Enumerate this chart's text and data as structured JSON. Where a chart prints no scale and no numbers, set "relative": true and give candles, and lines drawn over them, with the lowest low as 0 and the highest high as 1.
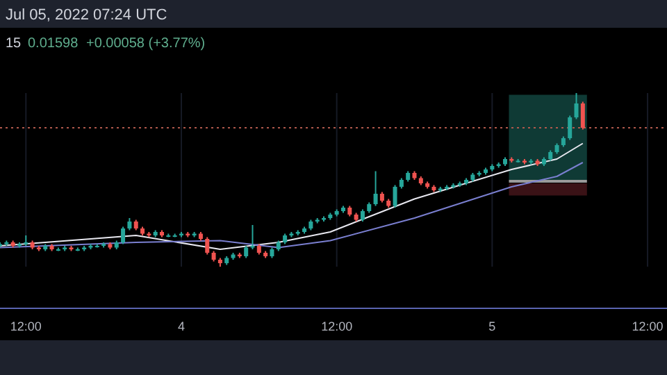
{
  "chart_data": {
    "type": "candlestick",
    "relative": true,
    "annotations": [
      "Jul 05, 2022 07:24 UTC",
      "15",
      "0.01598",
      "+0.00058 (+3.77%)"
    ],
    "x": [
      "2022-07-03T10:00",
      "2022-07-03T10:30",
      "2022-07-03T11:00",
      "2022-07-03T11:30",
      "2022-07-03T12:00",
      "2022-07-03T12:30",
      "2022-07-03T13:00",
      "2022-07-03T13:30",
      "2022-07-03T14:00",
      "2022-07-03T14:30",
      "2022-07-03T15:00",
      "2022-07-03T15:30",
      "2022-07-03T16:00",
      "2022-07-03T16:30",
      "2022-07-03T17:00",
      "2022-07-03T17:30",
      "2022-07-03T18:00",
      "2022-07-03T18:30",
      "2022-07-03T19:00",
      "2022-07-03T19:30",
      "2022-07-03T20:00",
      "2022-07-03T20:30",
      "2022-07-03T21:00",
      "2022-07-03T21:30",
      "2022-07-03T22:00",
      "2022-07-03T22:30",
      "2022-07-03T23:00",
      "2022-07-03T23:30",
      "2022-07-04T00:00",
      "2022-07-04T00:30",
      "2022-07-04T01:00",
      "2022-07-04T01:30",
      "2022-07-04T02:00",
      "2022-07-04T02:30",
      "2022-07-04T03:00",
      "2022-07-04T03:30",
      "2022-07-04T04:00",
      "2022-07-04T04:30",
      "2022-07-04T05:00",
      "2022-07-04T05:30",
      "2022-07-04T06:00",
      "2022-07-04T06:30",
      "2022-07-04T07:00",
      "2022-07-04T07:30",
      "2022-07-04T08:00",
      "2022-07-04T08:30",
      "2022-07-04T09:00",
      "2022-07-04T09:30",
      "2022-07-04T10:00",
      "2022-07-04T10:30",
      "2022-07-04T11:00",
      "2022-07-04T11:30",
      "2022-07-04T12:00",
      "2022-07-04T12:30",
      "2022-07-04T13:00",
      "2022-07-04T13:30",
      "2022-07-04T14:00",
      "2022-07-04T14:30",
      "2022-07-04T15:00",
      "2022-07-04T15:30",
      "2022-07-04T16:00",
      "2022-07-04T16:30",
      "2022-07-04T17:00",
      "2022-07-04T17:30",
      "2022-07-04T18:00",
      "2022-07-04T18:30",
      "2022-07-04T19:00",
      "2022-07-04T19:30",
      "2022-07-04T20:00",
      "2022-07-04T20:30",
      "2022-07-04T21:00",
      "2022-07-04T21:30",
      "2022-07-04T22:00",
      "2022-07-04T22:30",
      "2022-07-04T23:00",
      "2022-07-04T23:30",
      "2022-07-05T00:00",
      "2022-07-05T00:30",
      "2022-07-05T01:00",
      "2022-07-05T01:30",
      "2022-07-05T02:00",
      "2022-07-05T02:30",
      "2022-07-05T03:00",
      "2022-07-05T03:30",
      "2022-07-05T04:00",
      "2022-07-05T04:30",
      "2022-07-05T05:00",
      "2022-07-05T05:30",
      "2022-07-05T06:00",
      "2022-07-05T06:30",
      "2022-07-05T07:00"
    ],
    "ohlc": [
      [
        0.12,
        0.14,
        0.11,
        0.13
      ],
      [
        0.13,
        0.15,
        0.12,
        0.14
      ],
      [
        0.14,
        0.15,
        0.11,
        0.12
      ],
      [
        0.12,
        0.14,
        0.11,
        0.13
      ],
      [
        0.13,
        0.18,
        0.12,
        0.14
      ],
      [
        0.14,
        0.15,
        0.1,
        0.11
      ],
      [
        0.11,
        0.12,
        0.09,
        0.1
      ],
      [
        0.1,
        0.13,
        0.09,
        0.12
      ],
      [
        0.12,
        0.13,
        0.09,
        0.1
      ],
      [
        0.1,
        0.11,
        0.09,
        0.1
      ],
      [
        0.1,
        0.12,
        0.09,
        0.11
      ],
      [
        0.11,
        0.12,
        0.09,
        0.1
      ],
      [
        0.1,
        0.11,
        0.09,
        0.1
      ],
      [
        0.1,
        0.12,
        0.09,
        0.11
      ],
      [
        0.11,
        0.13,
        0.1,
        0.12
      ],
      [
        0.12,
        0.13,
        0.11,
        0.12
      ],
      [
        0.12,
        0.14,
        0.11,
        0.13
      ],
      [
        0.13,
        0.14,
        0.1,
        0.11
      ],
      [
        0.11,
        0.15,
        0.1,
        0.14
      ],
      [
        0.14,
        0.23,
        0.13,
        0.22
      ],
      [
        0.22,
        0.28,
        0.21,
        0.26
      ],
      [
        0.26,
        0.27,
        0.21,
        0.22
      ],
      [
        0.22,
        0.23,
        0.18,
        0.19
      ],
      [
        0.19,
        0.2,
        0.17,
        0.18
      ],
      [
        0.18,
        0.21,
        0.17,
        0.2
      ],
      [
        0.2,
        0.21,
        0.17,
        0.18
      ],
      [
        0.18,
        0.19,
        0.17,
        0.18
      ],
      [
        0.18,
        0.19,
        0.17,
        0.18
      ],
      [
        0.18,
        0.2,
        0.17,
        0.19
      ],
      [
        0.19,
        0.2,
        0.17,
        0.18
      ],
      [
        0.18,
        0.2,
        0.17,
        0.19
      ],
      [
        0.19,
        0.2,
        0.15,
        0.16
      ],
      [
        0.16,
        0.17,
        0.07,
        0.08
      ],
      [
        0.08,
        0.09,
        0.03,
        0.04
      ],
      [
        0.04,
        0.05,
        0.0,
        0.02
      ],
      [
        0.02,
        0.06,
        0.01,
        0.05
      ],
      [
        0.05,
        0.08,
        0.04,
        0.07
      ],
      [
        0.07,
        0.08,
        0.05,
        0.06
      ],
      [
        0.06,
        0.12,
        0.05,
        0.11
      ],
      [
        0.11,
        0.24,
        0.1,
        0.12
      ],
      [
        0.12,
        0.13,
        0.07,
        0.08
      ],
      [
        0.08,
        0.09,
        0.05,
        0.06
      ],
      [
        0.06,
        0.11,
        0.05,
        0.1
      ],
      [
        0.1,
        0.15,
        0.09,
        0.14
      ],
      [
        0.14,
        0.19,
        0.13,
        0.18
      ],
      [
        0.18,
        0.2,
        0.17,
        0.19
      ],
      [
        0.19,
        0.21,
        0.18,
        0.2
      ],
      [
        0.2,
        0.23,
        0.19,
        0.22
      ],
      [
        0.22,
        0.27,
        0.21,
        0.26
      ],
      [
        0.26,
        0.28,
        0.25,
        0.27
      ],
      [
        0.27,
        0.29,
        0.26,
        0.28
      ],
      [
        0.28,
        0.31,
        0.27,
        0.3
      ],
      [
        0.3,
        0.33,
        0.29,
        0.32
      ],
      [
        0.32,
        0.35,
        0.31,
        0.34
      ],
      [
        0.34,
        0.35,
        0.29,
        0.3
      ],
      [
        0.3,
        0.31,
        0.26,
        0.27
      ],
      [
        0.27,
        0.33,
        0.26,
        0.32
      ],
      [
        0.32,
        0.37,
        0.31,
        0.36
      ],
      [
        0.36,
        0.55,
        0.35,
        0.42
      ],
      [
        0.42,
        0.43,
        0.37,
        0.38
      ],
      [
        0.38,
        0.39,
        0.34,
        0.35
      ],
      [
        0.35,
        0.47,
        0.34,
        0.46
      ],
      [
        0.46,
        0.51,
        0.45,
        0.5
      ],
      [
        0.5,
        0.55,
        0.49,
        0.54
      ],
      [
        0.54,
        0.55,
        0.5,
        0.51
      ],
      [
        0.51,
        0.52,
        0.47,
        0.48
      ],
      [
        0.48,
        0.49,
        0.45,
        0.46
      ],
      [
        0.46,
        0.47,
        0.43,
        0.44
      ],
      [
        0.44,
        0.46,
        0.43,
        0.45
      ],
      [
        0.45,
        0.47,
        0.44,
        0.46
      ],
      [
        0.46,
        0.48,
        0.45,
        0.47
      ],
      [
        0.47,
        0.49,
        0.46,
        0.48
      ],
      [
        0.48,
        0.51,
        0.47,
        0.5
      ],
      [
        0.5,
        0.54,
        0.49,
        0.53
      ],
      [
        0.53,
        0.55,
        0.52,
        0.54
      ],
      [
        0.54,
        0.57,
        0.53,
        0.56
      ],
      [
        0.56,
        0.59,
        0.55,
        0.58
      ],
      [
        0.58,
        0.6,
        0.57,
        0.59
      ],
      [
        0.59,
        0.63,
        0.58,
        0.62
      ],
      [
        0.62,
        0.63,
        0.6,
        0.61
      ],
      [
        0.61,
        0.62,
        0.6,
        0.61
      ],
      [
        0.61,
        0.62,
        0.59,
        0.6
      ],
      [
        0.6,
        0.62,
        0.59,
        0.61
      ],
      [
        0.61,
        0.62,
        0.58,
        0.59
      ],
      [
        0.59,
        0.63,
        0.58,
        0.62
      ],
      [
        0.62,
        0.67,
        0.61,
        0.66
      ],
      [
        0.66,
        0.71,
        0.65,
        0.7
      ],
      [
        0.7,
        0.75,
        0.69,
        0.74
      ],
      [
        0.74,
        0.87,
        0.73,
        0.86
      ],
      [
        0.86,
        1.0,
        0.85,
        0.94
      ],
      [
        0.94,
        0.95,
        0.79,
        0.8
      ]
    ],
    "colors": [
      "#26a69a",
      "#26a69a",
      "#ef5350",
      "#26a69a",
      "#26a69a",
      "#ef5350",
      "#ef5350",
      "#26a69a",
      "#ef5350",
      "#26a69a",
      "#26a69a",
      "#ef5350",
      "#26a69a",
      "#26a69a",
      "#26a69a",
      "#26a69a",
      "#26a69a",
      "#ef5350",
      "#26a69a",
      "#26a69a",
      "#26a69a",
      "#ef5350",
      "#ef5350",
      "#ef5350",
      "#26a69a",
      "#ef5350",
      "#26a69a",
      "#26a69a",
      "#26a69a",
      "#ef5350",
      "#26a69a",
      "#ef5350",
      "#ef5350",
      "#ef5350",
      "#ef5350",
      "#26a69a",
      "#26a69a",
      "#ef5350",
      "#26a69a",
      "#26a69a",
      "#ef5350",
      "#ef5350",
      "#26a69a",
      "#26a69a",
      "#26a69a",
      "#26a69a",
      "#26a69a",
      "#26a69a",
      "#26a69a",
      "#26a69a",
      "#26a69a",
      "#26a69a",
      "#26a69a",
      "#26a69a",
      "#ef5350",
      "#ef5350",
      "#26a69a",
      "#26a69a",
      "#26a69a",
      "#ef5350",
      "#ef5350",
      "#26a69a",
      "#26a69a",
      "#26a69a",
      "#ef5350",
      "#ef5350",
      "#ef5350",
      "#ef5350",
      "#26a69a",
      "#26a69a",
      "#26a69a",
      "#26a69a",
      "#26a69a",
      "#26a69a",
      "#26a69a",
      "#26a69a",
      "#26a69a",
      "#26a69a",
      "#26a69a",
      "#ef5350",
      "#26a69a",
      "#ef5350",
      "#26a69a",
      "#ef5350",
      "#26a69a",
      "#26a69a",
      "#26a69a",
      "#26a69a",
      "#26a69a",
      "#26a69a",
      "#ef5350"
    ],
    "series": [
      {
        "type": "line",
        "color": "#e8e8f0",
        "x": [
          "2022-07-03T10:00",
          "2022-07-03T20:30",
          "2022-07-04T03:00",
          "2022-07-04T07:30",
          "2022-07-04T11:30",
          "2022-07-04T18:00",
          "2022-07-05T01:30",
          "2022-07-05T05:00",
          "2022-07-05T07:00"
        ],
        "values": [
          0.12,
          0.18,
          0.1,
          0.14,
          0.2,
          0.39,
          0.56,
          0.62,
          0.71
        ]
      },
      {
        "type": "line",
        "color": "#7a7fd0",
        "x": [
          "2022-07-03T10:00",
          "2022-07-03T20:30",
          "2022-07-04T03:00",
          "2022-07-04T07:30",
          "2022-07-04T11:30",
          "2022-07-04T18:00",
          "2022-07-05T01:30",
          "2022-07-05T05:00",
          "2022-07-05T07:00"
        ],
        "values": [
          0.11,
          0.14,
          0.15,
          0.11,
          0.15,
          0.28,
          0.46,
          0.52,
          0.6
        ]
      }
    ],
    "ref_lines": [
      {
        "axis": "y",
        "value": 0.8,
        "color": "#b0584c",
        "line_style": "dotted"
      }
    ],
    "xlim": [
      "2022-07-03T10:00",
      "2022-07-05T13:30"
    ],
    "xticks": [
      {
        "value": "2022-07-03T12:00",
        "label": "12:00"
      },
      {
        "value": "2022-07-04T00:00",
        "label": "4"
      },
      {
        "value": "2022-07-04T12:00",
        "label": "12:00"
      },
      {
        "value": "2022-07-05T00:00",
        "label": "5"
      },
      {
        "value": "2022-07-05T12:00",
        "label": "12:00"
      }
    ],
    "grid": "x",
    "line_style": "solid"
  }
}
